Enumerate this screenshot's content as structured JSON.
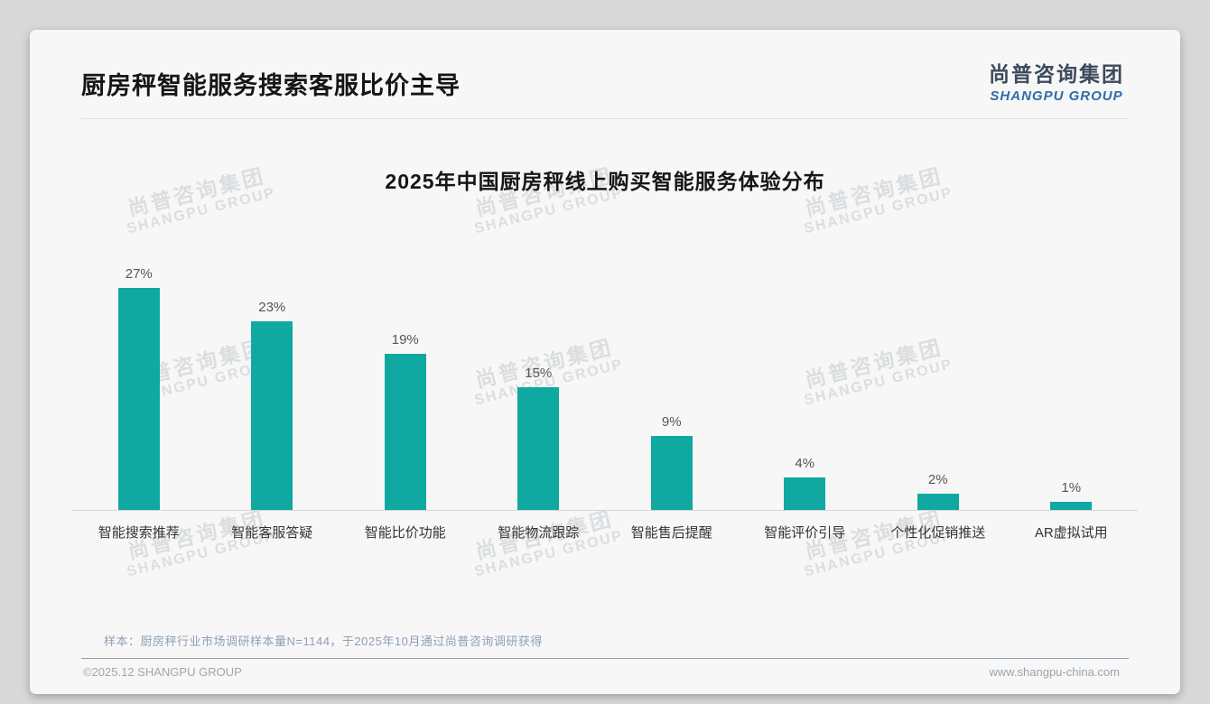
{
  "header": {
    "title": "厨房秤智能服务搜索客服比价主导",
    "logo": {
      "cn": "尚普咨询集团",
      "en": "SHANGPU GROUP"
    }
  },
  "chart_data": {
    "type": "bar",
    "title": "2025年中国厨房秤线上购买智能服务体验分布",
    "categories": [
      "智能搜索推荐",
      "智能客服答疑",
      "智能比价功能",
      "智能物流跟踪",
      "智能售后提醒",
      "智能评价引导",
      "个性化促销推送",
      "AR虚拟试用"
    ],
    "values": [
      27,
      23,
      19,
      15,
      9,
      4,
      2,
      1
    ],
    "value_suffix": "%",
    "bar_color": "#0fa9a2",
    "xlabel": "",
    "ylabel": "",
    "ylim": [
      0,
      30
    ],
    "grid": false,
    "legend": "none"
  },
  "watermark": {
    "cn": "尚普咨询集团",
    "en": "SHANGPU GROUP"
  },
  "footnote": "样本：厨房秤行业市场调研样本量N=1144，于2025年10月通过尚普咨询调研获得",
  "footer": {
    "copyright": "©2025.12 SHANGPU GROUP",
    "website": "www.shangpu-china.com"
  }
}
